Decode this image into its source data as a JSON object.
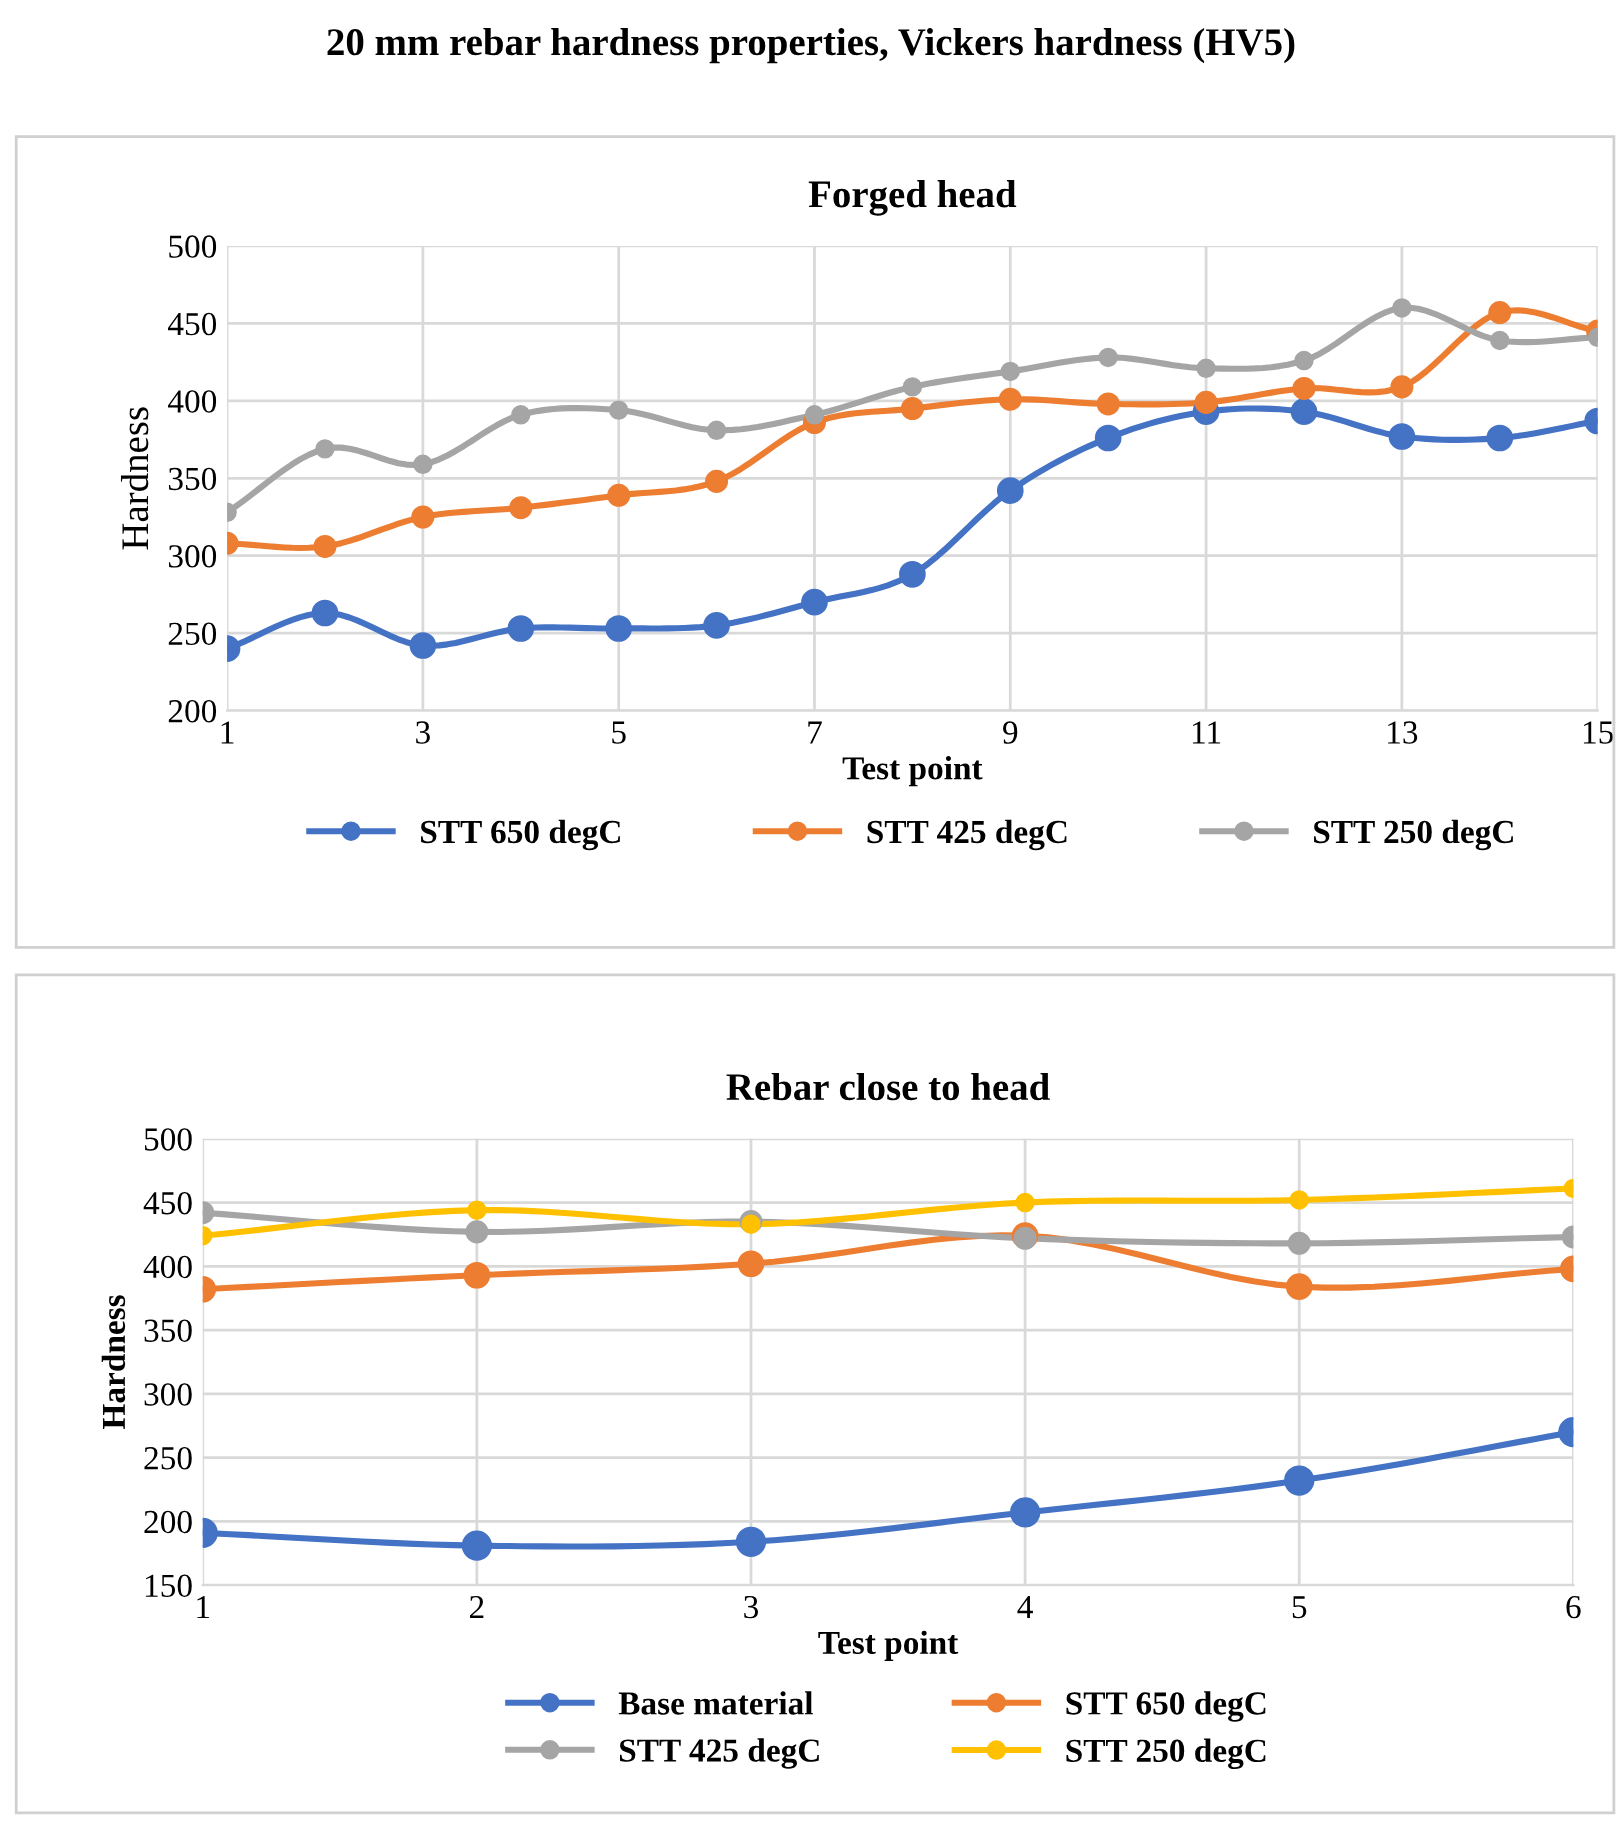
{
  "chart_data": [
    {
      "type": "line",
      "title": "Forged head",
      "annotations": [
        "20 mm rebar hardness properties, Vickers hardness (HV5)"
      ],
      "xlabel": "Test point",
      "ylabel": "Hardness",
      "x": [
        1,
        2,
        3,
        4,
        5,
        6,
        7,
        8,
        9,
        10,
        11,
        12,
        13,
        14,
        15
      ],
      "xlim": [
        1,
        15
      ],
      "xticks": [
        1,
        3,
        5,
        7,
        9,
        11,
        13,
        15
      ],
      "ylim": [
        200,
        500
      ],
      "yticks": [
        200,
        250,
        300,
        350,
        400,
        450,
        500
      ],
      "grid": true,
      "legend": "bottom",
      "marker": "circle",
      "line_style": "solid",
      "series": [
        {
          "name": "STT 650 degC",
          "color": "#4472c4",
          "values": [
            240,
            263,
            242,
            253,
            253,
            255,
            270,
            288,
            342,
            376,
            393,
            393,
            377,
            376,
            387
          ]
        },
        {
          "name": "STT 425 degC",
          "color": "#ed7d31",
          "values": [
            308,
            306,
            325,
            331,
            339,
            348,
            386,
            395,
            401,
            398,
            399,
            408,
            409,
            457,
            445
          ]
        },
        {
          "name": "STT 250 degC",
          "color": "#a5a5a5",
          "values": [
            328,
            369,
            359,
            391,
            394,
            381,
            391,
            409,
            419,
            428,
            421,
            426,
            460,
            439,
            441
          ]
        }
      ]
    },
    {
      "type": "line",
      "title": "Rebar close to head",
      "xlabel": "Test point",
      "ylabel": "Hardness",
      "x": [
        1,
        2,
        3,
        4,
        5,
        6
      ],
      "xlim": [
        1,
        6
      ],
      "xticks": [
        1,
        2,
        3,
        4,
        5,
        6
      ],
      "ylim": [
        150,
        500
      ],
      "yticks": [
        150,
        200,
        250,
        300,
        350,
        400,
        450,
        500
      ],
      "grid": true,
      "legend": "bottom",
      "marker": "circle",
      "line_style": "solid",
      "series": [
        {
          "name": "Base material",
          "color": "#4472c4",
          "values": [
            191,
            181,
            184,
            207,
            232,
            270
          ]
        },
        {
          "name": "STT 650 degC",
          "color": "#ed7d31",
          "values": [
            382,
            393,
            402,
            424,
            384,
            398
          ]
        },
        {
          "name": "STT 425 degC",
          "color": "#a5a5a5",
          "values": [
            442,
            427,
            435,
            422,
            418,
            423
          ]
        },
        {
          "name": "STT 250 degC",
          "color": "#ffc000",
          "values": [
            424,
            444,
            433,
            450,
            452,
            461
          ]
        }
      ]
    }
  ]
}
